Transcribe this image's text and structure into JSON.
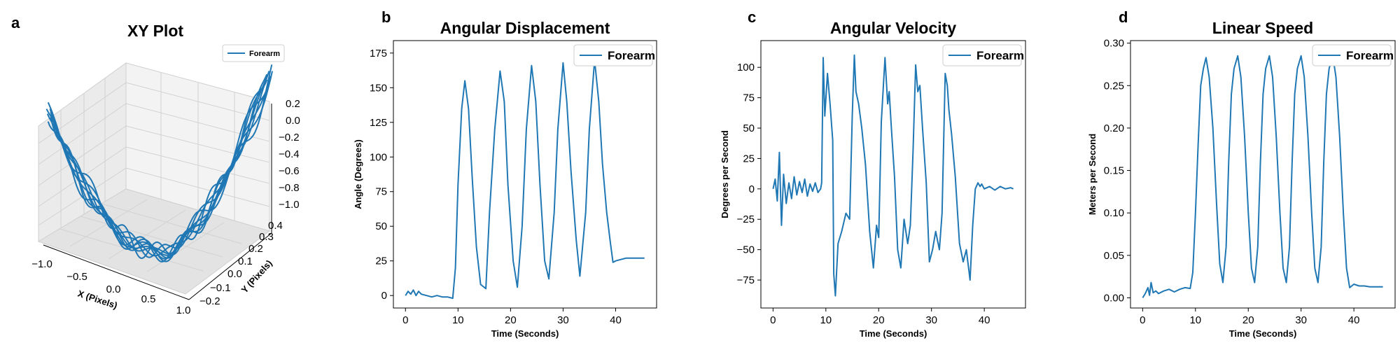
{
  "colors": {
    "series": "#1f77b4",
    "pane": "#f2f2f2",
    "grid": "#d9d9d9"
  },
  "chart_data": [
    {
      "panel": "a",
      "type": "line",
      "projection": "3d",
      "title": "XY Plot",
      "xlabel": "X (Pixels)",
      "ylabel": "Y (Pixels)",
      "zlabel": "",
      "xlim": [
        -1.0,
        1.0
      ],
      "ylim": [
        -0.2,
        0.4
      ],
      "zlim": [
        -1.0,
        0.2
      ],
      "x_ticks": [
        "−1.0",
        "−0.5",
        "0.0",
        "0.5",
        "1.0"
      ],
      "y_ticks": [
        "−0.2",
        "−0.1",
        "0.0",
        "0.1",
        "0.2",
        "0.3",
        "0.4"
      ],
      "z_ticks": [
        "0.2",
        "0.0",
        "−0.2",
        "−0.4",
        "−0.6",
        "−0.8",
        "−1.0"
      ],
      "grid": true,
      "legend": "top-right",
      "series": [
        {
          "name": "Forearm",
          "description_points": [
            {
              "x": -0.95,
              "y": 0.05,
              "z": 0.05
            },
            {
              "x": -0.8,
              "y": 0.05,
              "z": -0.55
            },
            {
              "x": -0.6,
              "y": 0.05,
              "z": -0.8
            },
            {
              "x": -0.3,
              "y": 0.0,
              "z": -0.95
            },
            {
              "x": 0.0,
              "y": 0.0,
              "z": -1.0
            },
            {
              "x": 0.3,
              "y": 0.0,
              "z": -0.85
            },
            {
              "x": 0.6,
              "y": 0.05,
              "z": -0.55
            },
            {
              "x": 0.85,
              "y": 0.05,
              "z": -0.15
            },
            {
              "x": 1.0,
              "y": 0.05,
              "z": 0.2
            }
          ]
        }
      ]
    },
    {
      "panel": "b",
      "type": "line",
      "title": "Angular Displacement",
      "xlabel": "Time (Seconds)",
      "ylabel": "Angle (Degrees)",
      "xlim": [
        -2.3,
        47.8
      ],
      "ylim": [
        -9,
        184
      ],
      "x_ticks": [
        0,
        10,
        20,
        30,
        40
      ],
      "y_ticks": [
        0,
        25,
        50,
        75,
        100,
        125,
        150,
        175
      ],
      "grid": false,
      "legend": "top-right",
      "series": [
        {
          "name": "Forearm",
          "x": [
            0,
            0.5,
            1,
            1.5,
            2,
            2.5,
            3,
            4,
            5,
            6,
            7,
            8,
            9,
            9.5,
            10,
            10.7,
            11.3,
            12,
            12.7,
            13.5,
            14.3,
            15.3,
            16,
            17,
            18,
            18.8,
            19.5,
            20.5,
            21.3,
            22.2,
            23,
            24,
            24.8,
            25.6,
            26.5,
            27.3,
            28.3,
            29,
            30,
            30.7,
            31.5,
            32.5,
            33.2,
            34.3,
            35,
            36,
            36.8,
            37.5,
            38.3,
            39,
            39.5,
            40,
            42,
            44,
            45.5
          ],
          "values": [
            0,
            3,
            1,
            4,
            0,
            3,
            1,
            0,
            -1,
            0,
            -1,
            -1,
            -2,
            20,
            80,
            135,
            155,
            135,
            85,
            35,
            8,
            5,
            60,
            120,
            162,
            140,
            80,
            25,
            6,
            50,
            120,
            166,
            140,
            80,
            25,
            12,
            60,
            120,
            168,
            140,
            90,
            40,
            14,
            60,
            120,
            170,
            140,
            95,
            60,
            38,
            24,
            25,
            27,
            27,
            27
          ]
        }
      ]
    },
    {
      "panel": "c",
      "type": "line",
      "title": "Angular Velocity",
      "xlabel": "Time (Seconds)",
      "ylabel": "Degrees per Second",
      "xlim": [
        -2.3,
        47.8
      ],
      "ylim": [
        -98,
        122
      ],
      "x_ticks": [
        0,
        10,
        20,
        30,
        40
      ],
      "y_ticks": [
        -75,
        -50,
        -25,
        0,
        25,
        50,
        75,
        100
      ],
      "grid": false,
      "legend": "top-right",
      "series": [
        {
          "name": "Forearm",
          "x": [
            0,
            0.4,
            0.8,
            1.2,
            1.6,
            2,
            2.5,
            3,
            3.5,
            4,
            4.5,
            5,
            5.5,
            6,
            6.5,
            7,
            7.5,
            8,
            8.5,
            9,
            9.2,
            9.5,
            9.8,
            10.3,
            10.8,
            11.3,
            11.5,
            11.8,
            12.3,
            13,
            13.8,
            14.5,
            15,
            15.4,
            15.7,
            16.2,
            16.8,
            17.5,
            18.3,
            19,
            19.6,
            20,
            20.5,
            21.2,
            21.7,
            22,
            22.4,
            23,
            23.6,
            24.2,
            24.8,
            25.5,
            26,
            26.5,
            27,
            27.4,
            27.8,
            28.3,
            29,
            29.6,
            30.2,
            30.8,
            31.5,
            32,
            32.6,
            33,
            33.3,
            33.8,
            34.5,
            35.3,
            36,
            36.6,
            37.3,
            37.8,
            38.3,
            38.8,
            39.2,
            39.5,
            40,
            41,
            42,
            43,
            44,
            45,
            45.5
          ],
          "values": [
            0,
            8,
            -10,
            30,
            -30,
            12,
            -12,
            5,
            -8,
            10,
            -5,
            6,
            -3,
            8,
            -6,
            4,
            -2,
            5,
            -3,
            0,
            5,
            108,
            60,
            95,
            70,
            40,
            -70,
            -88,
            -45,
            -35,
            -20,
            -25,
            60,
            110,
            80,
            70,
            50,
            20,
            -35,
            -65,
            -30,
            -40,
            55,
            108,
            70,
            80,
            50,
            10,
            -50,
            -65,
            -25,
            -45,
            -30,
            30,
            102,
            80,
            85,
            50,
            5,
            -60,
            -50,
            -35,
            -50,
            -20,
            95,
            85,
            65,
            45,
            10,
            -45,
            -60,
            -50,
            -75,
            -30,
            0,
            5,
            2,
            4,
            0,
            2,
            -1,
            2,
            0,
            1,
            0
          ]
        }
      ]
    },
    {
      "panel": "d",
      "type": "line",
      "title": "Linear Speed",
      "xlabel": "Time (Seconds)",
      "ylabel": "Meters per Second",
      "xlim": [
        -2.3,
        47.8
      ],
      "ylim": [
        -0.012,
        0.303
      ],
      "x_ticks": [
        0,
        10,
        20,
        30,
        40
      ],
      "y_ticks": [
        "0.00",
        "0.05",
        "0.10",
        "0.15",
        "0.20",
        "0.25",
        "0.30"
      ],
      "grid": false,
      "legend": "top-right",
      "series": [
        {
          "name": "Forearm",
          "x": [
            0,
            0.5,
            1,
            1.3,
            1.6,
            2,
            2.5,
            3,
            4,
            5,
            6,
            7,
            8,
            9,
            9.5,
            10,
            10.5,
            11,
            11.5,
            12,
            12.6,
            13.3,
            14,
            14.6,
            15.2,
            15.8,
            16.3,
            16.8,
            17.3,
            18,
            18.6,
            19.3,
            20,
            20.6,
            21.2,
            21.8,
            22.3,
            22.8,
            23.3,
            24,
            24.6,
            25.3,
            26,
            26.6,
            27.2,
            27.8,
            28.3,
            28.8,
            29.3,
            30,
            30.6,
            31.3,
            32,
            32.6,
            33.2,
            33.8,
            34.3,
            34.8,
            35.3,
            36,
            36.6,
            37.3,
            38,
            38.6,
            39.2,
            40,
            41,
            42,
            43,
            44,
            45.5
          ],
          "values": [
            0.0,
            0.005,
            0.012,
            0.003,
            0.018,
            0.006,
            0.008,
            0.005,
            0.008,
            0.01,
            0.007,
            0.01,
            0.012,
            0.011,
            0.03,
            0.1,
            0.18,
            0.25,
            0.27,
            0.283,
            0.26,
            0.2,
            0.11,
            0.04,
            0.018,
            0.06,
            0.16,
            0.24,
            0.27,
            0.285,
            0.26,
            0.19,
            0.1,
            0.035,
            0.018,
            0.06,
            0.16,
            0.24,
            0.27,
            0.285,
            0.26,
            0.19,
            0.1,
            0.035,
            0.018,
            0.06,
            0.16,
            0.24,
            0.27,
            0.285,
            0.26,
            0.19,
            0.1,
            0.035,
            0.018,
            0.06,
            0.16,
            0.24,
            0.27,
            0.285,
            0.26,
            0.19,
            0.1,
            0.035,
            0.012,
            0.016,
            0.014,
            0.014,
            0.013,
            0.013,
            0.013
          ]
        }
      ]
    }
  ]
}
